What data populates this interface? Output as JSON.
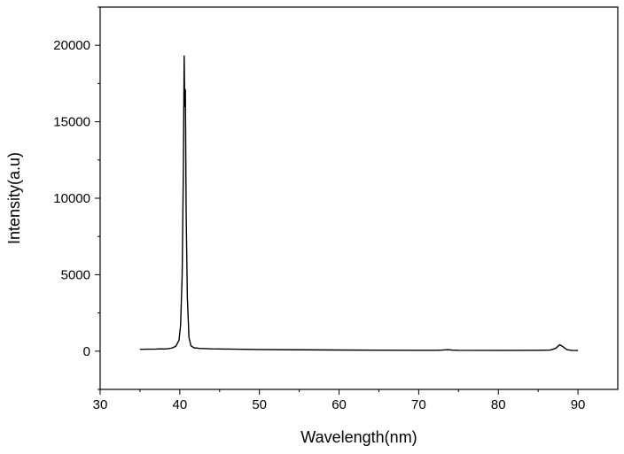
{
  "chart_data": {
    "type": "line",
    "title": "",
    "xlabel": "Wavelength(nm)",
    "ylabel": "Intensity(a.u)",
    "xlim": [
      30,
      95
    ],
    "ylim": [
      -2500,
      22500
    ],
    "x_ticks": [
      30,
      40,
      50,
      60,
      70,
      80,
      90
    ],
    "y_ticks": [
      0,
      5000,
      10000,
      15000,
      20000
    ],
    "grid": false,
    "legend": "none",
    "colors": {
      "line": "#000000",
      "axis": "#000000",
      "background": "#ffffff"
    },
    "series": [
      {
        "points": [
          [
            35,
            120
          ],
          [
            36,
            130
          ],
          [
            37,
            135
          ],
          [
            37.5,
            150
          ],
          [
            38,
            140
          ],
          [
            38.5,
            160
          ],
          [
            39,
            200
          ],
          [
            39.5,
            320
          ],
          [
            39.9,
            700
          ],
          [
            40.1,
            1700
          ],
          [
            40.3,
            5000
          ],
          [
            40.45,
            12000
          ],
          [
            40.55,
            19300
          ],
          [
            40.62,
            16000
          ],
          [
            40.7,
            17100
          ],
          [
            40.8,
            9000
          ],
          [
            40.95,
            3500
          ],
          [
            41.15,
            900
          ],
          [
            41.4,
            350
          ],
          [
            41.8,
            220
          ],
          [
            42.5,
            180
          ],
          [
            44,
            150
          ],
          [
            46,
            135
          ],
          [
            50,
            110
          ],
          [
            55,
            90
          ],
          [
            60,
            75
          ],
          [
            65,
            65
          ],
          [
            70,
            55
          ],
          [
            72,
            55
          ],
          [
            73,
            70
          ],
          [
            73.6,
            100
          ],
          [
            74.2,
            70
          ],
          [
            75,
            55
          ],
          [
            80,
            50
          ],
          [
            85,
            55
          ],
          [
            86.5,
            70
          ],
          [
            87.2,
            180
          ],
          [
            87.7,
            420
          ],
          [
            88.1,
            300
          ],
          [
            88.6,
            100
          ],
          [
            89.2,
            50
          ],
          [
            90,
            40
          ]
        ]
      }
    ]
  }
}
